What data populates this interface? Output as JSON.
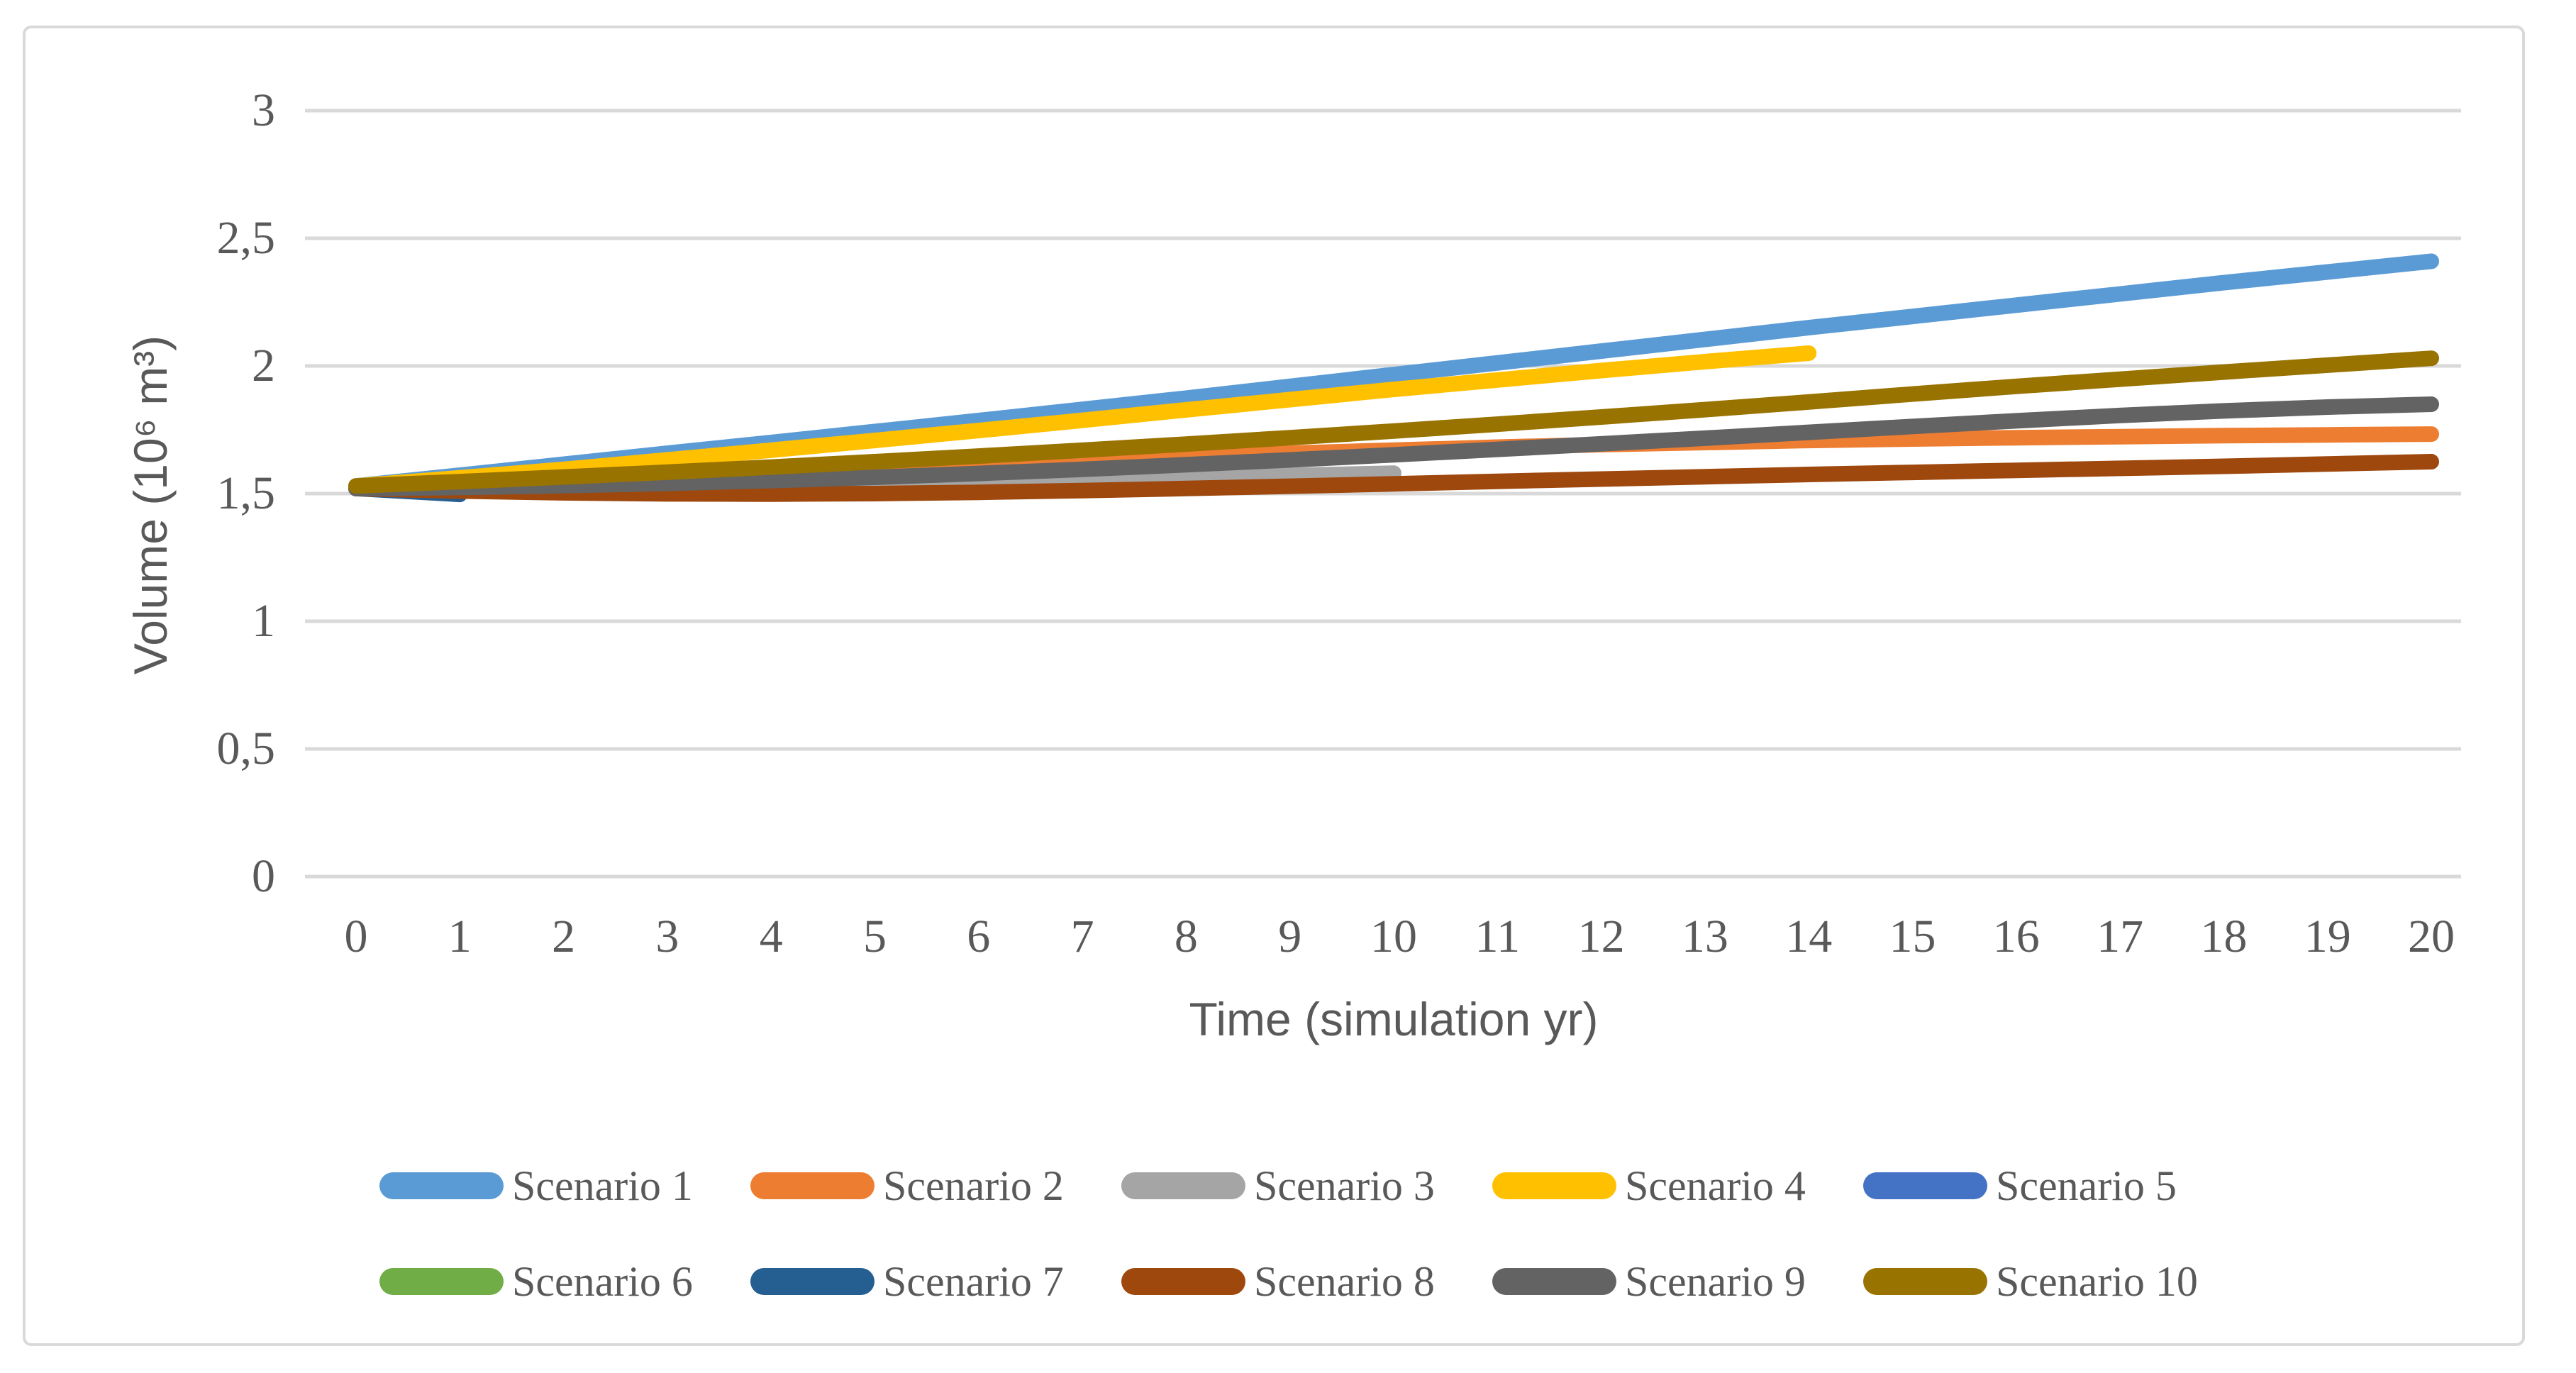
{
  "figure": {
    "border_color": "#D9D9D9",
    "background": "#FFFFFF",
    "text_color": "#595959",
    "grid_color": "#D9D9D9"
  },
  "chart_data": {
    "type": "line",
    "title": "",
    "xlabel": "Time (simulation yr)",
    "ylabel": "Volume (10⁶ m³)",
    "xlim": [
      0,
      20
    ],
    "ylim": [
      0,
      3
    ],
    "grid": "horizontal",
    "legend_position": "bottom",
    "x_ticks": [
      "0",
      "1",
      "2",
      "3",
      "4",
      "5",
      "6",
      "7",
      "8",
      "9",
      "10",
      "11",
      "12",
      "13",
      "14",
      "15",
      "16",
      "17",
      "18",
      "19",
      "20"
    ],
    "y_ticks": [
      "0",
      "0,5",
      "1",
      "1,5",
      "2",
      "2,5",
      "3"
    ],
    "y_tick_values": [
      0,
      0.5,
      1,
      1.5,
      2,
      2.5,
      3
    ],
    "series": [
      {
        "name": "Scenario 1",
        "color": "#5B9BD5",
        "x": [
          0,
          1,
          2,
          3,
          4,
          5,
          6,
          7,
          8,
          9,
          10,
          11,
          12,
          13,
          14,
          15,
          16,
          17,
          18,
          19,
          20
        ],
        "values": [
          1.53,
          1.572,
          1.615,
          1.658,
          1.7,
          1.743,
          1.786,
          1.83,
          1.874,
          1.92,
          1.966,
          2.012,
          2.058,
          2.104,
          2.15,
          2.194,
          2.238,
          2.282,
          2.326,
          2.368,
          2.41
        ]
      },
      {
        "name": "Scenario 2",
        "color": "#ED7D31",
        "x": [
          0,
          1,
          2,
          3,
          4,
          5,
          6,
          7,
          8,
          9,
          10,
          11,
          12,
          13,
          14,
          15,
          16,
          17,
          18,
          19,
          20
        ],
        "values": [
          1.52,
          1.54,
          1.555,
          1.57,
          1.585,
          1.6,
          1.615,
          1.63,
          1.645,
          1.658,
          1.67,
          1.682,
          1.692,
          1.7,
          1.708,
          1.714,
          1.719,
          1.723,
          1.727,
          1.73,
          1.733
        ]
      },
      {
        "name": "Scenario 3",
        "color": "#A5A5A5",
        "x": [
          0,
          1,
          2,
          3,
          4,
          5,
          6,
          7,
          8,
          9,
          10
        ],
        "values": [
          1.52,
          1.522,
          1.525,
          1.529,
          1.534,
          1.54,
          1.547,
          1.554,
          1.562,
          1.571,
          1.58
        ]
      },
      {
        "name": "Scenario 4",
        "color": "#FFC000",
        "x": [
          0,
          1,
          2,
          3,
          4,
          5,
          6,
          7,
          8,
          9,
          10,
          11,
          12,
          13,
          14
        ],
        "values": [
          1.53,
          1.562,
          1.595,
          1.632,
          1.67,
          1.708,
          1.747,
          1.787,
          1.828,
          1.868,
          1.908,
          1.945,
          1.982,
          2.017,
          2.05
        ]
      },
      {
        "name": "Scenario 5",
        "color": "#4472C4",
        "x": [
          0,
          1
        ],
        "values": [
          1.522,
          1.519
        ]
      },
      {
        "name": "Scenario 6",
        "color": "#70AD47",
        "x": [
          0,
          1
        ],
        "values": [
          1.523,
          1.52
        ]
      },
      {
        "name": "Scenario 7",
        "color": "#255E91",
        "x": [
          0,
          1
        ],
        "values": [
          1.52,
          1.497
        ]
      },
      {
        "name": "Scenario 8",
        "color": "#9E480E",
        "x": [
          0,
          1,
          2,
          3,
          4,
          5,
          6,
          7,
          8,
          9,
          10,
          11,
          12,
          13,
          14,
          15,
          16,
          17,
          18,
          19,
          20
        ],
        "values": [
          1.52,
          1.51,
          1.503,
          1.499,
          1.498,
          1.5,
          1.505,
          1.512,
          1.52,
          1.529,
          1.538,
          1.548,
          1.557,
          1.566,
          1.575,
          1.583,
          1.591,
          1.599,
          1.607,
          1.616,
          1.625
        ]
      },
      {
        "name": "Scenario 9",
        "color": "#636363",
        "x": [
          0,
          1,
          2,
          3,
          4,
          5,
          6,
          7,
          8,
          9,
          10,
          11,
          12,
          13,
          14,
          15,
          16,
          17,
          18,
          19,
          20
        ],
        "values": [
          1.52,
          1.524,
          1.531,
          1.54,
          1.551,
          1.564,
          1.579,
          1.595,
          1.613,
          1.632,
          1.652,
          1.673,
          1.695,
          1.717,
          1.74,
          1.763,
          1.785,
          1.806,
          1.824,
          1.839,
          1.85
        ]
      },
      {
        "name": "Scenario 10",
        "color": "#997300",
        "x": [
          0,
          1,
          2,
          3,
          4,
          5,
          6,
          7,
          8,
          9,
          10,
          11,
          12,
          13,
          14,
          15,
          16,
          17,
          18,
          19,
          20
        ],
        "values": [
          1.53,
          1.547,
          1.565,
          1.584,
          1.604,
          1.625,
          1.647,
          1.67,
          1.694,
          1.719,
          1.745,
          1.772,
          1.8,
          1.829,
          1.859,
          1.89,
          1.92,
          1.948,
          1.976,
          2.003,
          2.03
        ]
      }
    ]
  }
}
